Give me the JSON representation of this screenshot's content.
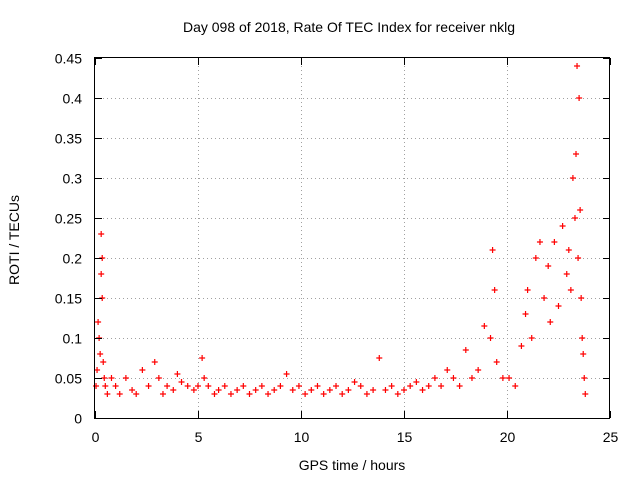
{
  "chart_data": {
    "type": "scatter",
    "title": "Day 098 of 2018, Rate Of TEC Index for receiver nklg",
    "xlabel": "GPS time / hours",
    "ylabel": "ROTI / TECUs",
    "xlim": [
      0,
      25
    ],
    "ylim": [
      0,
      0.45
    ],
    "x_ticks": [
      0,
      5,
      10,
      15,
      20,
      25
    ],
    "x_tick_labels": [
      "0",
      "5",
      "10",
      "15",
      "20",
      "25"
    ],
    "y_ticks": [
      0,
      0.05,
      0.1,
      0.15,
      0.2,
      0.25,
      0.3,
      0.35,
      0.4,
      0.45
    ],
    "y_tick_labels": [
      "0",
      "0.05",
      "0.1",
      "0.15",
      "0.2",
      "0.25",
      "0.3",
      "0.35",
      "0.4",
      "0.45"
    ],
    "grid": true,
    "marker": "+",
    "marker_color": "#ff0000",
    "series": [
      {
        "name": "ROTI",
        "x": [
          0.05,
          0.1,
          0.15,
          0.2,
          0.25,
          0.3,
          0.3,
          0.35,
          0.35,
          0.4,
          0.45,
          0.5,
          0.6,
          0.8,
          1.0,
          1.2,
          1.5,
          1.8,
          2.0,
          2.3,
          2.6,
          2.9,
          3.1,
          3.3,
          3.5,
          3.8,
          4.0,
          4.2,
          4.5,
          4.8,
          5.0,
          5.2,
          5.3,
          5.5,
          5.8,
          6.0,
          6.3,
          6.6,
          6.9,
          7.2,
          7.5,
          7.8,
          8.1,
          8.4,
          8.7,
          9.0,
          9.3,
          9.6,
          9.9,
          10.2,
          10.5,
          10.8,
          11.1,
          11.4,
          11.7,
          12.0,
          12.3,
          12.6,
          12.9,
          13.2,
          13.5,
          13.8,
          14.1,
          14.4,
          14.7,
          15.0,
          15.3,
          15.6,
          15.9,
          16.2,
          16.5,
          16.8,
          17.1,
          17.4,
          17.7,
          18.0,
          18.3,
          18.6,
          18.9,
          19.2,
          19.3,
          19.4,
          19.5,
          19.8,
          20.1,
          20.4,
          20.7,
          20.9,
          21.0,
          21.2,
          21.4,
          21.6,
          21.8,
          22.0,
          22.1,
          22.3,
          22.5,
          22.7,
          22.9,
          23.0,
          23.1,
          23.2,
          23.3,
          23.35,
          23.4,
          23.45,
          23.5,
          23.55,
          23.6,
          23.65,
          23.7,
          23.75,
          23.8
        ],
        "y": [
          0.04,
          0.06,
          0.12,
          0.1,
          0.08,
          0.23,
          0.18,
          0.2,
          0.15,
          0.07,
          0.05,
          0.04,
          0.03,
          0.05,
          0.04,
          0.03,
          0.05,
          0.035,
          0.03,
          0.06,
          0.04,
          0.07,
          0.05,
          0.03,
          0.04,
          0.035,
          0.055,
          0.045,
          0.04,
          0.035,
          0.04,
          0.075,
          0.05,
          0.04,
          0.03,
          0.035,
          0.04,
          0.03,
          0.035,
          0.04,
          0.03,
          0.035,
          0.04,
          0.03,
          0.035,
          0.04,
          0.055,
          0.035,
          0.04,
          0.03,
          0.035,
          0.04,
          0.03,
          0.035,
          0.04,
          0.03,
          0.035,
          0.045,
          0.04,
          0.03,
          0.035,
          0.075,
          0.035,
          0.04,
          0.03,
          0.035,
          0.04,
          0.045,
          0.035,
          0.04,
          0.05,
          0.04,
          0.06,
          0.05,
          0.04,
          0.085,
          0.05,
          0.06,
          0.115,
          0.1,
          0.21,
          0.16,
          0.07,
          0.05,
          0.05,
          0.04,
          0.09,
          0.13,
          0.16,
          0.1,
          0.2,
          0.22,
          0.15,
          0.19,
          0.12,
          0.22,
          0.14,
          0.24,
          0.18,
          0.21,
          0.16,
          0.3,
          0.25,
          0.33,
          0.44,
          0.2,
          0.4,
          0.26,
          0.15,
          0.1,
          0.08,
          0.05,
          0.03
        ]
      }
    ]
  }
}
